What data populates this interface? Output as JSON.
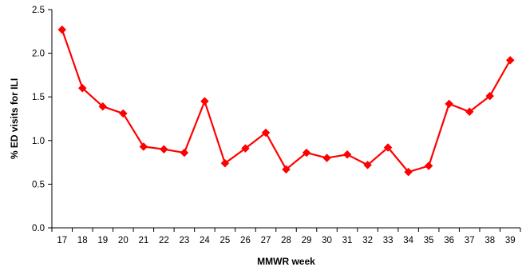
{
  "chart_data": {
    "type": "line",
    "title": "",
    "xlabel": "MMWR week",
    "ylabel": "% ED visits for ILI",
    "x": [
      "17",
      "18",
      "19",
      "20",
      "21",
      "22",
      "23",
      "24",
      "25",
      "26",
      "27",
      "28",
      "29",
      "30",
      "31",
      "32",
      "33",
      "34",
      "35",
      "36",
      "37",
      "38",
      "39"
    ],
    "series": [
      {
        "values": [
          2.27,
          1.6,
          1.39,
          1.31,
          0.93,
          0.9,
          0.86,
          1.45,
          0.74,
          0.91,
          1.09,
          0.67,
          0.86,
          0.8,
          0.84,
          0.72,
          0.92,
          0.64,
          0.71,
          1.42,
          1.33,
          1.51,
          1.92
        ],
        "color": "#ff0000",
        "marker": "diamond"
      }
    ],
    "ylim": [
      0,
      2.5
    ],
    "yticks": [
      "0.0",
      "0.5",
      "1.0",
      "1.5",
      "2.0",
      "2.5"
    ],
    "grid": false,
    "legend": "none"
  }
}
